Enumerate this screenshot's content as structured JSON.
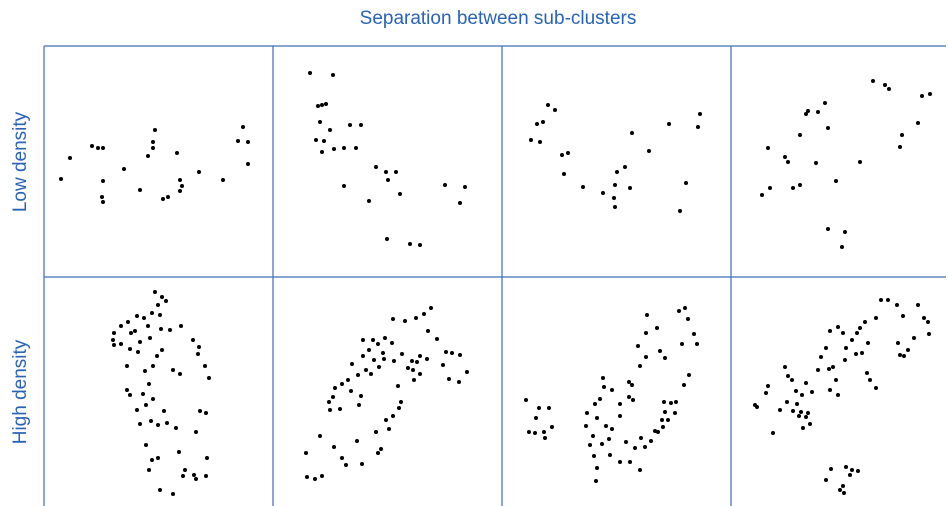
{
  "title": "Separation between sub-clusters",
  "row_labels": [
    "Low density",
    "High density"
  ],
  "chart_data": [
    {
      "type": "scatter",
      "color": "#000000",
      "xlim": [
        0,
        229
      ],
      "ylim": [
        0,
        231
      ],
      "x": [
        17,
        26,
        48,
        54,
        59,
        59,
        58,
        59,
        80,
        96,
        104,
        109,
        111,
        109,
        119,
        124,
        133,
        136,
        138,
        136,
        155,
        179,
        194,
        199,
        204,
        204
      ],
      "y": [
        98,
        119,
        131,
        129,
        129,
        96,
        80,
        75,
        108,
        87,
        121,
        129,
        147,
        135,
        78,
        80,
        124,
        97,
        91,
        86,
        105,
        97,
        136,
        150,
        135,
        113
      ]
    },
    {
      "type": "scatter",
      "color": "#000000",
      "xlim": [
        0,
        229
      ],
      "ylim": [
        0,
        231
      ],
      "x": [
        37,
        60,
        45,
        49,
        53,
        47,
        43,
        51,
        49,
        61,
        71,
        83,
        77,
        88,
        71,
        96,
        103,
        113,
        123,
        115,
        127,
        114,
        137,
        147,
        172,
        192,
        187,
        57
      ],
      "y": [
        204,
        202,
        171,
        172,
        173,
        155,
        137,
        136,
        125,
        128,
        129,
        129,
        152,
        152,
        91,
        76,
        110,
        105,
        105,
        97,
        83,
        38,
        33,
        32,
        92,
        90,
        74,
        147
      ]
    },
    {
      "type": "scatter",
      "color": "#000000",
      "xlim": [
        0,
        229
      ],
      "ylim": [
        0,
        231
      ],
      "x": [
        46,
        53,
        35,
        41,
        29,
        38,
        60,
        66,
        62,
        81,
        101,
        113,
        115,
        123,
        112,
        113,
        130,
        147,
        128,
        167,
        196,
        198,
        184,
        178
      ],
      "y": [
        172,
        167,
        153,
        155,
        137,
        135,
        122,
        124,
        103,
        90,
        84,
        92,
        105,
        110,
        79,
        70,
        144,
        126,
        89,
        153,
        150,
        163,
        94,
        66
      ]
    },
    {
      "type": "scatter",
      "color": "#000000",
      "xlim": [
        0,
        215
      ],
      "ylim": [
        0,
        231
      ],
      "x": [
        31,
        39,
        37,
        54,
        57,
        62,
        69,
        69,
        75,
        77,
        87,
        94,
        97,
        85,
        105,
        129,
        142,
        154,
        158,
        169,
        171,
        187,
        191,
        199,
        97,
        114,
        111
      ],
      "y": [
        82,
        89,
        129,
        120,
        115,
        89,
        92,
        142,
        163,
        166,
        165,
        174,
        149,
        114,
        96,
        115,
        196,
        192,
        188,
        130,
        142,
        154,
        181,
        183,
        48,
        45,
        30
      ]
    },
    {
      "type": "scatter",
      "color": "#000000",
      "xlim": [
        0,
        229
      ],
      "ylim": [
        0,
        229
      ],
      "x": [
        111,
        118,
        114,
        122,
        108,
        116,
        100,
        104,
        93,
        84,
        77,
        70,
        69,
        70,
        77,
        87,
        91,
        96,
        106,
        117,
        126,
        137,
        149,
        155,
        154,
        161,
        165,
        136,
        129,
        118,
        113,
        109,
        94,
        86,
        83,
        101,
        105,
        99,
        86,
        83,
        102,
        109,
        93,
        120,
        123,
        107,
        96,
        114,
        132,
        156,
        162,
        152,
        102,
        108,
        114,
        135,
        105,
        139,
        152,
        162,
        163,
        150,
        129,
        116,
        141
      ],
      "y": [
        214,
        209,
        201,
        205,
        193,
        191,
        188,
        180,
        190,
        184,
        180,
        173,
        166,
        161,
        162,
        173,
        175,
        164,
        168,
        177,
        176,
        180,
        166,
        159,
        152,
        140,
        128,
        132,
        136,
        156,
        150,
        140,
        154,
        157,
        140,
        135,
        122,
        112,
        111,
        116,
        101,
        107,
        96,
        95,
        83,
        85,
        82,
        81,
        78,
        95,
        93,
        74,
        61,
        46,
        48,
        54,
        36,
        30,
        27,
        30,
        48,
        31,
        12,
        16,
        36
      ]
    },
    {
      "type": "scatter",
      "color": "#000000",
      "xlim": [
        0,
        229
      ],
      "ylim": [
        0,
        229
      ],
      "x": [
        33,
        34,
        42,
        49,
        47,
        61,
        69,
        73,
        89,
        84,
        105,
        108,
        116,
        120,
        126,
        113,
        103,
        67,
        60,
        57,
        56,
        62,
        69,
        75,
        78,
        86,
        88,
        93,
        98,
        101,
        106,
        110,
        119,
        112,
        100,
        90,
        90,
        96,
        105,
        111,
        121,
        129,
        135,
        140,
        139,
        144,
        147,
        154,
        147,
        141,
        125,
        128,
        120,
        132,
        143,
        151,
        158,
        155,
        164,
        173,
        179,
        187,
        194,
        186,
        176,
        170,
        79,
        85
      ],
      "y": [
        53,
        29,
        27,
        30,
        70,
        59,
        48,
        41,
        42,
        65,
        53,
        57,
        77,
        90,
        98,
        86,
        74,
        97,
        109,
        96,
        104,
        118,
        122,
        126,
        115,
        101,
        110,
        136,
        132,
        146,
        139,
        153,
        163,
        168,
        166,
        166,
        150,
        156,
        162,
        147,
        145,
        152,
        138,
        136,
        145,
        144,
        150,
        147,
        132,
        126,
        120,
        104,
        187,
        185,
        188,
        192,
        198,
        175,
        167,
        154,
        153,
        151,
        134,
        124,
        127,
        141,
        142,
        131
      ]
    },
    {
      "type": "scatter",
      "color": "#000000",
      "xlim": [
        0,
        229
      ],
      "ylim": [
        0,
        229
      ],
      "x": [
        24,
        37,
        47,
        34,
        27,
        33,
        42,
        43,
        50,
        85,
        84,
        91,
        88,
        100,
        107,
        104,
        95,
        93,
        98,
        101,
        102,
        110,
        118,
        127,
        131,
        118,
        110,
        124,
        133,
        139,
        153,
        161,
        163,
        162,
        169,
        174,
        173,
        166,
        160,
        156,
        149,
        143,
        128,
        138,
        118,
        108,
        95,
        94,
        130,
        138,
        144,
        136,
        144,
        145,
        155,
        158,
        163,
        177,
        183,
        186,
        180,
        192,
        195,
        187,
        182,
        127,
        92
      ],
      "y": [
        106,
        98,
        98,
        88,
        74,
        73,
        74,
        68,
        79,
        93,
        80,
        70,
        61,
        62,
        67,
        80,
        88,
        102,
        107,
        128,
        119,
        116,
        102,
        124,
        106,
        90,
        77,
        64,
        58,
        68,
        75,
        79,
        94,
        104,
        103,
        104,
        93,
        86,
        86,
        74,
        65,
        59,
        44,
        36,
        44,
        51,
        38,
        25,
        121,
        140,
        149,
        160,
        173,
        191,
        178,
        155,
        148,
        195,
        198,
        187,
        162,
        172,
        162,
        131,
        121,
        109,
        50
      ]
    },
    {
      "type": "scatter",
      "color": "#000000",
      "xlim": [
        0,
        215
      ],
      "ylim": [
        0,
        229
      ],
      "x": [
        24,
        26,
        35,
        37,
        42,
        49,
        54,
        57,
        61,
        65,
        66,
        70,
        75,
        77,
        79,
        72,
        68,
        62,
        56,
        71,
        75,
        81,
        87,
        90,
        95,
        99,
        107,
        112,
        115,
        114,
        105,
        99,
        107,
        98,
        102,
        121,
        126,
        125,
        131,
        129,
        134,
        137,
        139,
        145,
        136,
        145,
        150,
        157,
        166,
        172,
        167,
        173,
        177,
        169,
        187,
        193,
        198,
        183,
        197,
        100,
        115,
        121,
        127,
        112,
        109,
        113,
        95,
        119
      ],
      "y": [
        101,
        99,
        113,
        120,
        73,
        96,
        139,
        130,
        126,
        115,
        102,
        94,
        89,
        93,
        82,
        78,
        90,
        95,
        104,
        111,
        123,
        114,
        136,
        149,
        158,
        175,
        179,
        173,
        158,
        146,
        126,
        116,
        111,
        137,
        139,
        166,
        173,
        152,
        153,
        178,
        184,
        163,
        126,
        118,
        133,
        188,
        206,
        206,
        201,
        190,
        163,
        150,
        156,
        151,
        201,
        188,
        172,
        168,
        184,
        37,
        39,
        36,
        35,
        20,
        16,
        13,
        26,
        31
      ]
    }
  ]
}
